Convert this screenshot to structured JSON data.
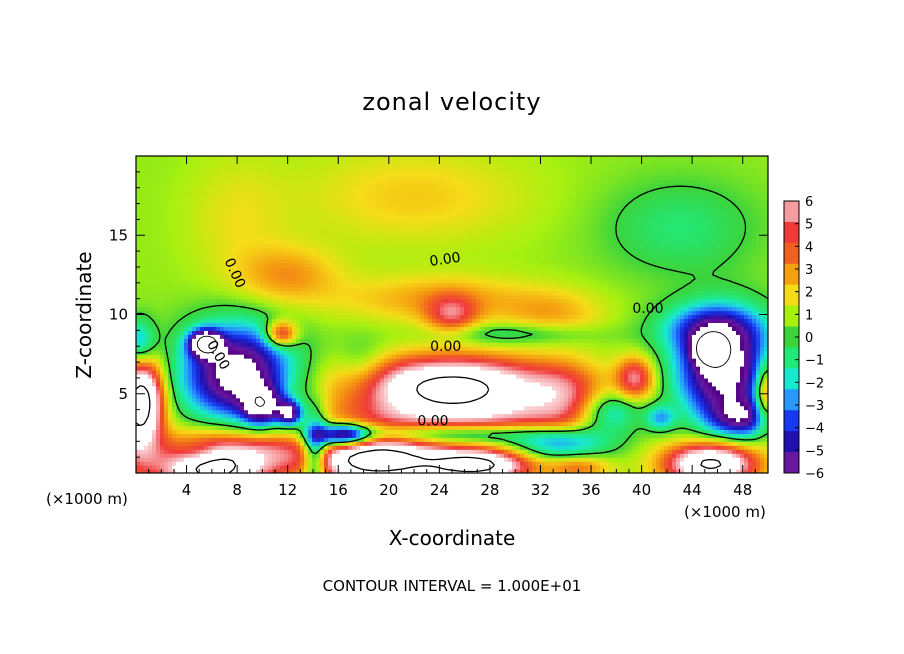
{
  "chart_data": {
    "type": "heatmap",
    "title": "zonal velocity",
    "xlabel": "X-coordinate",
    "ylabel": "Z-coordinate",
    "x_unit_left": "(×1000 m)",
    "x_unit_right": "(×1000 m)",
    "footer": "CONTOUR INTERVAL = 1.000E+01",
    "xlim": [
      0,
      50
    ],
    "ylim": [
      0,
      20
    ],
    "x_ticks": [
      "4",
      "8",
      "12",
      "16",
      "20",
      "24",
      "28",
      "32",
      "36",
      "40",
      "44",
      "48"
    ],
    "y_ticks": [
      "5",
      "10",
      "15"
    ],
    "colorbar": {
      "ticks": [
        "6",
        "5",
        "4",
        "3",
        "2",
        "1",
        "0",
        "−1",
        "−2",
        "−3",
        "−4",
        "−5",
        "−6"
      ],
      "range": [
        -6,
        6
      ],
      "colors": [
        "#f59ca0",
        "#f03a3a",
        "#f06020",
        "#f5a010",
        "#f5dc18",
        "#a8f010",
        "#3cd43c",
        "#22e878",
        "#18e8d0",
        "#2898ff",
        "#1838f0",
        "#2010b0",
        "#6818a0"
      ]
    },
    "contour_labels": [
      "0.00",
      "0.00",
      "0.00",
      "0.00",
      "0.00"
    ],
    "background_value": 0.8,
    "features": [
      {
        "x": 22,
        "z": 17.5,
        "v": 1.5,
        "rx": 9,
        "rz": 3
      },
      {
        "x": 43,
        "z": 15.5,
        "v": -1.7,
        "rx": 6,
        "rz": 3
      },
      {
        "x": 8,
        "z": 16,
        "v": 1.0,
        "rx": 4,
        "rz": 4
      },
      {
        "x": 12,
        "z": 12.5,
        "v": 2.3,
        "rx": 4,
        "rz": 1.8
      },
      {
        "x": 24,
        "z": 11,
        "v": 2.2,
        "rx": 8,
        "rz": 1.5
      },
      {
        "x": 25,
        "z": 10,
        "v": 3.6,
        "rx": 2,
        "rz": 1.2
      },
      {
        "x": 33,
        "z": 10,
        "v": 1.8,
        "rx": 4,
        "rz": 1.5
      },
      {
        "x": 8,
        "z": 6.3,
        "v": -9,
        "rx": 4.2,
        "rz": 3
      },
      {
        "x": 5.5,
        "z": 8.2,
        "v": -10,
        "rx": 1.2,
        "rz": 0.8
      },
      {
        "x": 10,
        "z": 4.2,
        "v": -7,
        "rx": 1.5,
        "rz": 1.2
      },
      {
        "x": 12.2,
        "z": 3.8,
        "v": -7.5,
        "rx": 1.0,
        "rz": 0.8
      },
      {
        "x": 46.5,
        "z": 6.5,
        "v": -9,
        "rx": 3.6,
        "rz": 3.2
      },
      {
        "x": 45.5,
        "z": 7.8,
        "v": -10,
        "rx": 1.2,
        "rz": 0.9
      },
      {
        "x": 45.5,
        "z": 9.2,
        "v": -4,
        "rx": 4,
        "rz": 1.5
      },
      {
        "x": 41.5,
        "z": 3.5,
        "v": -3.5,
        "rx": 1.2,
        "rz": 0.8
      },
      {
        "x": 11.5,
        "z": 8.8,
        "v": 5.5,
        "rx": 1.2,
        "rz": 0.8
      },
      {
        "x": 25,
        "z": 5.5,
        "v": 10,
        "rx": 7.5,
        "rz": 1.8
      },
      {
        "x": 25.5,
        "z": 3.3,
        "v": 4,
        "rx": 11,
        "rz": 1.5
      },
      {
        "x": 34,
        "z": 5,
        "v": 3,
        "rx": 3,
        "rz": 2
      },
      {
        "x": 0.5,
        "z": 4.8,
        "v": 9,
        "rx": 1.6,
        "rz": 2.5
      },
      {
        "x": 0,
        "z": 2.5,
        "v": 4,
        "rx": 2,
        "rz": 3
      },
      {
        "x": 49.8,
        "z": 5,
        "v": 5,
        "rx": 0.9,
        "rz": 2
      },
      {
        "x": 39.5,
        "z": 6,
        "v": 5,
        "rx": 1.5,
        "rz": 1.3
      },
      {
        "x": 6,
        "z": 0.5,
        "v": 11,
        "rx": 4,
        "rz": 1.8
      },
      {
        "x": 19,
        "z": 0.8,
        "v": 11,
        "rx": 5,
        "rz": 1.5
      },
      {
        "x": 27,
        "z": 0.5,
        "v": 10,
        "rx": 4,
        "rz": 1.0
      },
      {
        "x": 45.5,
        "z": 0.6,
        "v": 10,
        "rx": 3.5,
        "rz": 1.3
      },
      {
        "x": 35,
        "z": 0.4,
        "v": 3,
        "rx": 2.5,
        "rz": 0.8
      },
      {
        "x": 11,
        "z": 1.5,
        "v": 3,
        "rx": 3,
        "rz": 1.5
      },
      {
        "x": 16.5,
        "z": 2.4,
        "v": -8,
        "rx": 2,
        "rz": 0.7
      },
      {
        "x": 24,
        "z": 2.5,
        "v": -5,
        "rx": 9,
        "rz": 0.7
      },
      {
        "x": 0.3,
        "z": 8.2,
        "v": -4,
        "rx": 1.2,
        "rz": 1.5
      },
      {
        "x": 14.2,
        "z": 1.5,
        "v": -6,
        "rx": 1.0,
        "rz": 2.5
      },
      {
        "x": 33.5,
        "z": 1.8,
        "v": -4,
        "rx": 4,
        "rz": 1.0
      },
      {
        "x": 48,
        "z": 3.5,
        "v": -5,
        "rx": 2.5,
        "rz": 1.2
      },
      {
        "x": 5,
        "z": 1.3,
        "v": -3,
        "rx": 2,
        "rz": 0.8
      },
      {
        "x": 37.5,
        "z": 3.8,
        "v": -4,
        "rx": 2.5,
        "rz": 1.3
      },
      {
        "x": 18,
        "z": 6.5,
        "v": -1.5,
        "rx": 2,
        "rz": 2
      },
      {
        "x": 30,
        "z": 8.8,
        "v": -2,
        "rx": 6,
        "rz": 0.7
      }
    ]
  }
}
